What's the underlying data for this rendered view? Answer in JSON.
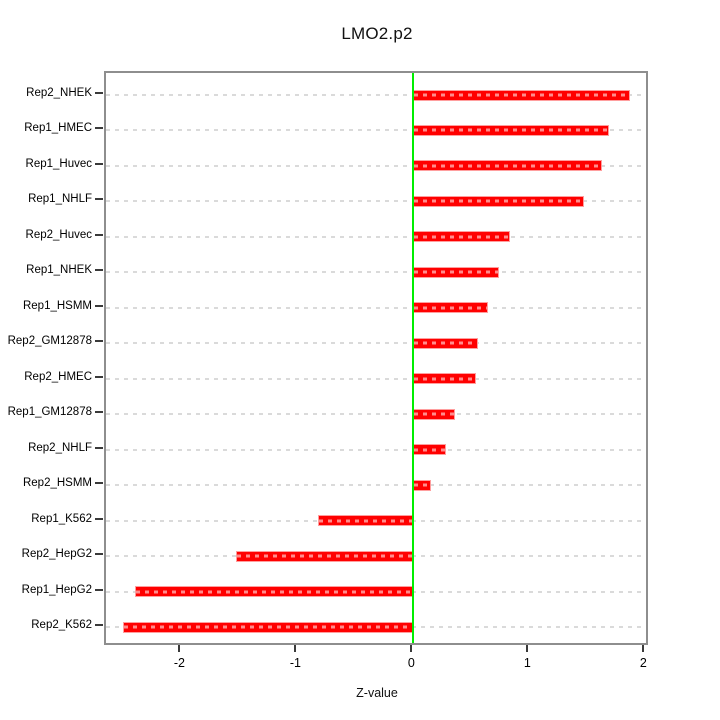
{
  "title": "LMO2.p2",
  "xaxis": {
    "label": "Z-value",
    "tick_labels": [
      "-2",
      "-1",
      "0",
      "1",
      "2"
    ],
    "tick_values": [
      -2,
      -1,
      0,
      1,
      2
    ]
  },
  "chart_data": {
    "type": "bar",
    "orientation": "horizontal",
    "title": "LMO2.p2",
    "xlabel": "Z-value",
    "ylabel": "",
    "categories": [
      "Rep2_NHEK",
      "Rep1_HMEC",
      "Rep1_Huvec",
      "Rep1_NHLF",
      "Rep2_Huvec",
      "Rep1_NHEK",
      "Rep1_HSMM",
      "Rep2_GM12878",
      "Rep2_HMEC",
      "Rep1_GM12878",
      "Rep2_NHLF",
      "Rep2_HSMM",
      "Rep1_K562",
      "Rep2_HepG2",
      "Rep1_HepG2",
      "Rep2_K562"
    ],
    "values": [
      1.87,
      1.69,
      1.63,
      1.47,
      0.83,
      0.74,
      0.64,
      0.56,
      0.54,
      0.36,
      0.28,
      0.15,
      -0.82,
      -1.53,
      -2.4,
      -2.5
    ],
    "xlim": [
      -2.65,
      2.04
    ],
    "xticks": [
      -2,
      -1,
      0,
      1,
      2
    ],
    "grid": "dotted-horizontal",
    "legend": "none",
    "colors": {
      "bar": "#ff0000",
      "zero_line": "#00ee00",
      "grid": "#dadada",
      "box_border": "#8e8e8e",
      "tick": "#3a3a3a",
      "background": "#ffffff"
    }
  }
}
